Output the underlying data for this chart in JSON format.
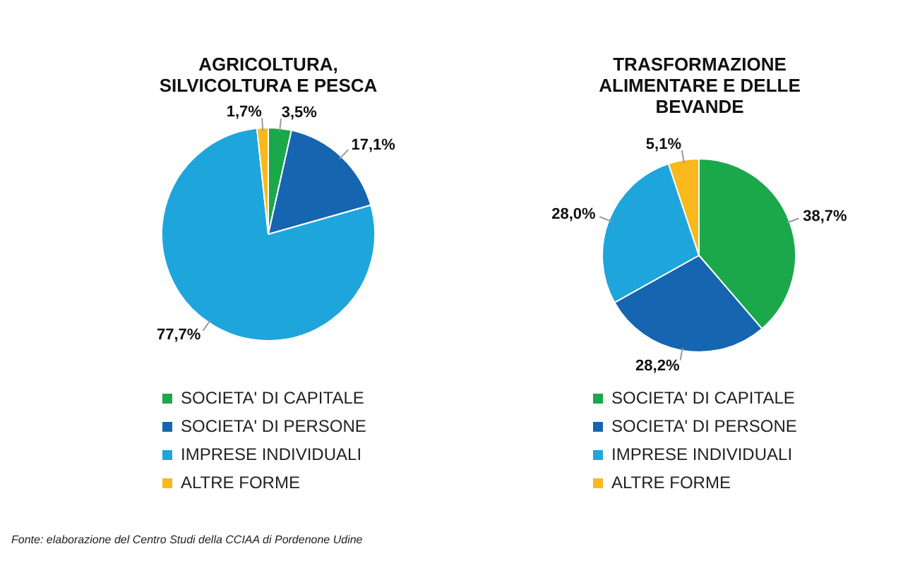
{
  "chart_data": [
    {
      "type": "pie",
      "title": "AGRICOLTURA, SILVICOLTURA E PESCA",
      "categories": [
        "SOCIETA' DI CAPITALE",
        "SOCIETA' DI PERSONE",
        "IMPRESE INDIVIDUALI",
        "ALTRE FORME"
      ],
      "values": [
        3.5,
        17.1,
        77.7,
        1.7
      ],
      "colors": [
        "#1aa84b",
        "#1565b0",
        "#1ea6dc",
        "#f9b81b"
      ],
      "value_labels": [
        "3,5%",
        "17,1%",
        "77,7%",
        "1,7%"
      ],
      "legend": "bottom",
      "annotations": [
        "Fonte: elaborazione del Centro Studi della CCIAA di Pordenone Udine"
      ]
    },
    {
      "type": "pie",
      "title": "TRASFORMAZIONE ALIMENTARE E DELLE BEVANDE",
      "categories": [
        "SOCIETA' DI CAPITALE",
        "SOCIETA' DI PERSONE",
        "IMPRESE INDIVIDUALI",
        "ALTRE FORME"
      ],
      "values": [
        38.7,
        28.2,
        28.0,
        5.1
      ],
      "colors": [
        "#1aa84b",
        "#1565b0",
        "#1ea6dc",
        "#f9b81b"
      ],
      "value_labels": [
        "38,7%",
        "28,2%",
        "28,0%",
        "5,1%"
      ],
      "legend": "bottom"
    }
  ]
}
